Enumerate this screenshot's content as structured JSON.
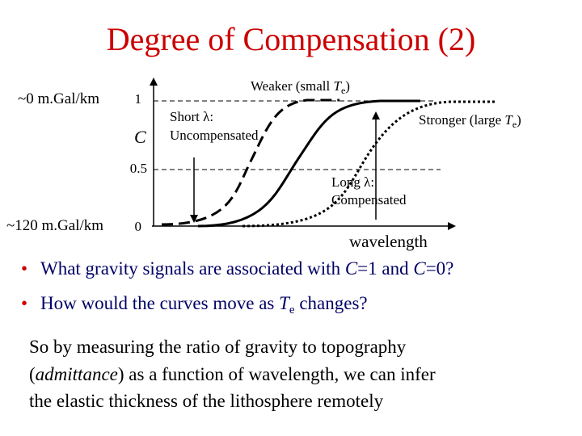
{
  "title": "Degree of Compensation (2)",
  "diagram": {
    "top_scale_label": "~0 m.Gal/km",
    "bottom_scale_label": "~120 m.Gal/km",
    "axis_label": "C",
    "ticks": [
      1,
      0.5,
      0
    ],
    "weaker": [
      "Weaker (small ",
      "T",
      "e",
      ")"
    ],
    "stronger": [
      "Stronger (large ",
      "T",
      "e",
      ")"
    ],
    "short": [
      "Short λ:",
      "Uncompensated"
    ],
    "long": [
      "Long λ:",
      "Compensated"
    ],
    "x_axis_label": "wavelength"
  },
  "bullets": [
    [
      "What gravity signals are associated with ",
      "C",
      "=1 and ",
      "C",
      "=0?"
    ],
    [
      "How would the curves move as ",
      "T",
      "e",
      " changes?"
    ]
  ],
  "paragraph": [
    [
      "So by measuring the ratio of gravity to topography"
    ],
    [
      "(",
      "admittance",
      ") as a function of wavelength, we can infer"
    ],
    [
      "the elastic thickness of the lithosphere remotely"
    ]
  ]
}
